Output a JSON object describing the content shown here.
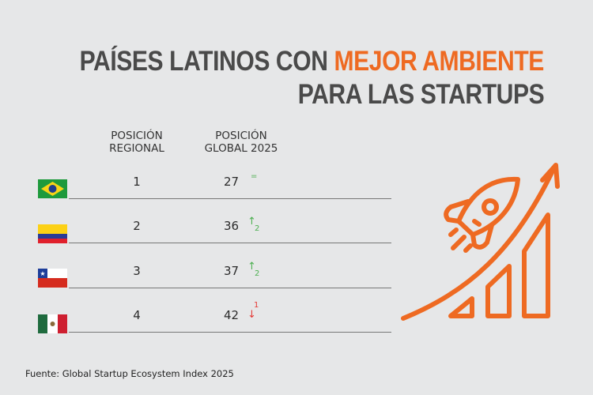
{
  "title": {
    "line1_a": "PAÍSES LATINOS CON ",
    "line1_b": "MEJOR AMBIENTE",
    "line2": "PARA LAS STARTUPS"
  },
  "headers": {
    "regional": "POSICIÓN REGIONAL",
    "global": "POSICIÓN GLOBAL 2025"
  },
  "rows": [
    {
      "country": "Brazil",
      "regional": "1",
      "global": "27",
      "change_symbol": "=",
      "change_value": "",
      "trend": "same"
    },
    {
      "country": "Colombia",
      "regional": "2",
      "global": "36",
      "change_symbol": "↑",
      "change_value": "2",
      "trend": "up"
    },
    {
      "country": "Chile",
      "regional": "3",
      "global": "37",
      "change_symbol": "↑",
      "change_value": "2",
      "trend": "up"
    },
    {
      "country": "Mexico",
      "regional": "4",
      "global": "42",
      "change_symbol": "↓",
      "change_value": "1",
      "trend": "down"
    }
  ],
  "source": "Fuente:  Global Startup Ecosystem Index 2025",
  "colors": {
    "accent": "#ee6a22",
    "up": "#4caf50",
    "down": "#e53935"
  },
  "icon": "rocket-growth-chart-icon"
}
